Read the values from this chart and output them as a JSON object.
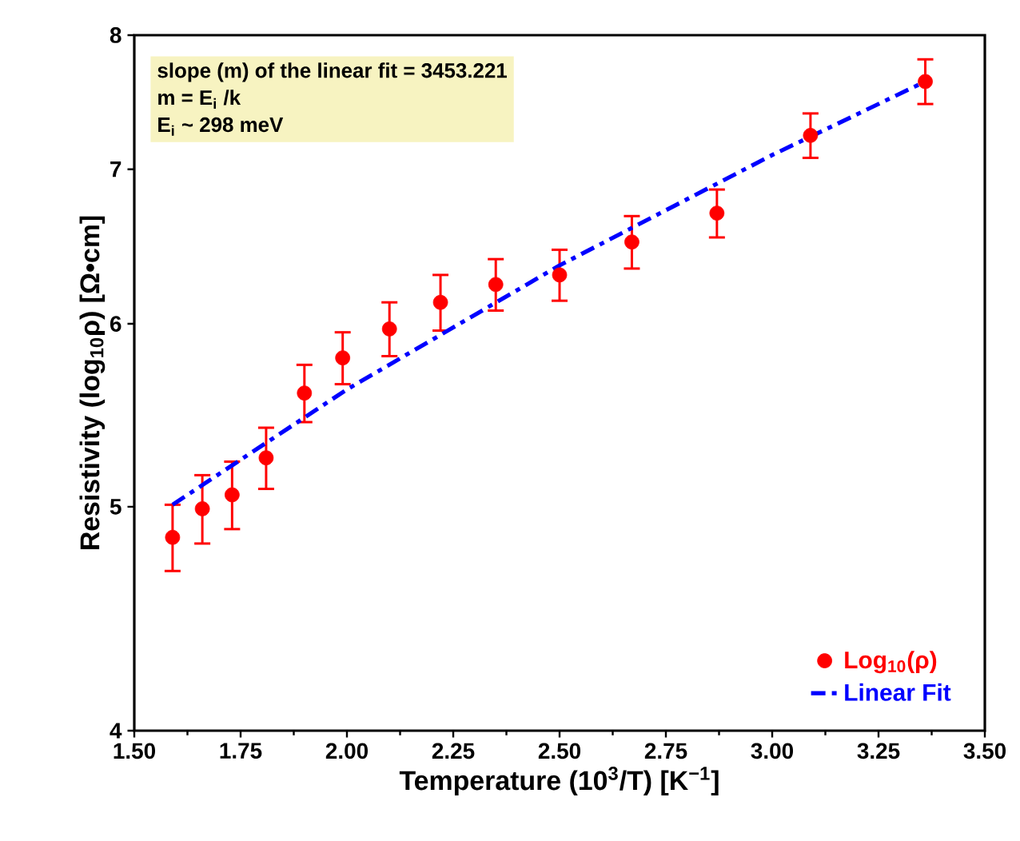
{
  "chart_data": {
    "type": "scatter",
    "xlabel": "Temperature (10$^{3}$/T) [K$^{−1}$]",
    "ylabel": "Resistivity (log$_{10}$ρ) [Ω•cm]",
    "annotations": [
      "slope (m) of the linear fit = 3453.221",
      "m = E$_{i}$ /k",
      "E$_{i}$ ~ 298 meV"
    ],
    "series": [
      {
        "name": "Log$_{10}$(ρ)",
        "color": "#ff0000",
        "marker": "circle",
        "x": [
          1.59,
          1.66,
          1.73,
          1.81,
          1.9,
          1.99,
          2.1,
          2.22,
          2.35,
          2.5,
          2.67,
          2.87,
          3.09,
          3.36
        ],
        "values": [
          4.85,
          4.99,
          5.06,
          5.25,
          5.6,
          5.8,
          5.97,
          6.13,
          6.24,
          6.3,
          6.51,
          6.7,
          7.24,
          7.64
        ],
        "errors": [
          0.16,
          0.17,
          0.17,
          0.16,
          0.16,
          0.15,
          0.16,
          0.17,
          0.16,
          0.16,
          0.17,
          0.16,
          0.16,
          0.17
        ]
      },
      {
        "name": "Linear Fit",
        "type": "line",
        "color": "#0000ff",
        "line_style": "dashdot",
        "marker": "none",
        "x": [
          1.59,
          2.0,
          2.5,
          3.0,
          3.36
        ],
        "values": [
          5.01,
          5.62,
          6.36,
          7.1,
          7.64
        ]
      }
    ],
    "xlim": [
      1.5,
      3.5
    ],
    "ylim": [
      4,
      8
    ],
    "log": "y",
    "xticks": [
      {
        "value": 1.5,
        "label": "1.50"
      },
      {
        "value": 1.75,
        "label": "1.75"
      },
      {
        "value": 2.0,
        "label": "2.00"
      },
      {
        "value": 2.25,
        "label": "2.25"
      },
      {
        "value": 2.5,
        "label": "2.50"
      },
      {
        "value": 2.75,
        "label": "2.75"
      },
      {
        "value": 3.0,
        "label": "3.00"
      },
      {
        "value": 3.25,
        "label": "3.25"
      },
      {
        "value": 3.5,
        "label": "3.50"
      }
    ],
    "yticks": [
      4,
      5,
      6,
      7,
      8
    ],
    "grid": false,
    "legend": "bottom right"
  }
}
